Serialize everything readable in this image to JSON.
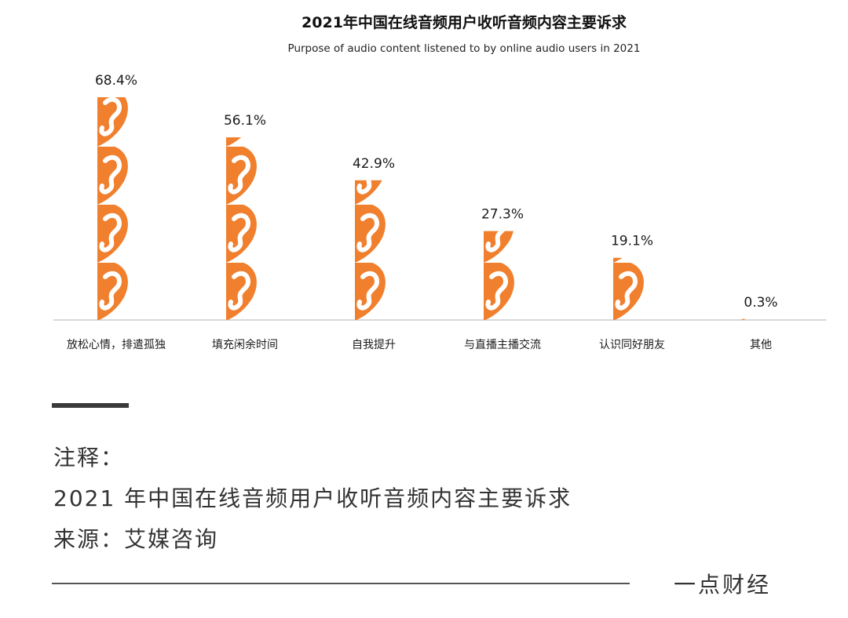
{
  "chart_data": {
    "type": "bar",
    "title": "2021年中国在线音频用户收听音频内容主要诉求",
    "subtitle": "Purpose of audio content listened to by online audio users in 2021",
    "categories": [
      "放松心情，排遣孤独",
      "填充闲余时间",
      "自我提升",
      "与直播主播交流",
      "认识同好朋友",
      "其他"
    ],
    "values": [
      68.4,
      56.1,
      42.9,
      27.3,
      19.1,
      0.3
    ],
    "value_labels": [
      "68.4%",
      "56.1%",
      "42.9%",
      "27.3%",
      "19.1%",
      "0.3%"
    ],
    "unit": "%",
    "ylim": [
      0,
      68.4
    ],
    "icon_name": "ear-icon",
    "icon_color": "#f07f2e",
    "icon_unit_value": 17.1,
    "grid": false,
    "legend": "none"
  },
  "notes": {
    "line1": "注释：",
    "line2": "2021 年中国在线音频用户收听音频内容主要诉求",
    "line3": "来源：艾媒咨询"
  },
  "brand": "一点财经",
  "colors": {
    "accent": "#f07f2e",
    "axis": "#d8d8d8",
    "text": "#1a1a1a"
  }
}
